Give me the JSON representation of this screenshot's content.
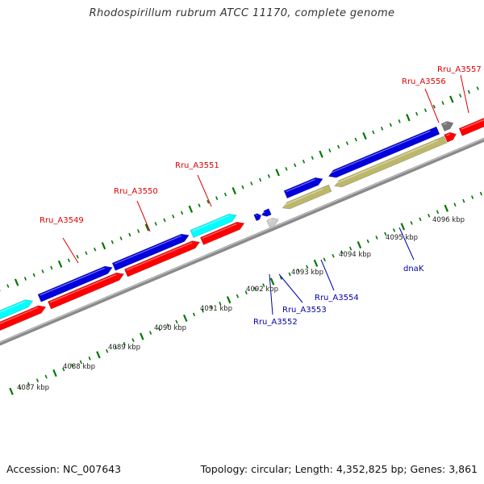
{
  "title": "Rhodospirillum rubrum ATCC 11170, complete genome",
  "footer": {
    "accession": "Accession: NC_007643",
    "summary": "Topology: circular; Length: 4,352,825 bp; Genes: 3,861"
  },
  "colors": {
    "forward_red": "#ff0000",
    "forward_blue": "#0000dd",
    "forward_cyan": "#00ffff",
    "reverse_khaki": "#bdb76b",
    "gray_gene": "#777777",
    "light_gray_gene": "#cccccc",
    "ticks": "#007700",
    "backbone": "#888888",
    "label_red": "#dd0000",
    "label_blue": "#0000aa"
  },
  "kbp_ticks": [
    "4087 kbp",
    "4088 kbp",
    "4089 kbp",
    "4090 kbp",
    "4091 kbp",
    "4092 kbp",
    "4093 kbp",
    "4094 kbp",
    "4095 kbp",
    "4096 kbp"
  ],
  "gene_labels": [
    {
      "text": "Rru_A3549",
      "color": "red"
    },
    {
      "text": "Rru_A3550",
      "color": "red"
    },
    {
      "text": "Rru_A3551",
      "color": "red"
    },
    {
      "text": "Rru_A3556",
      "color": "red"
    },
    {
      "text": "Rru_A3557",
      "color": "red"
    },
    {
      "text": "Rru_A3552",
      "color": "blue"
    },
    {
      "text": "Rru_A3553",
      "color": "blue"
    },
    {
      "text": "Rru_A3554",
      "color": "blue"
    },
    {
      "text": "dnaK",
      "color": "blue"
    }
  ]
}
